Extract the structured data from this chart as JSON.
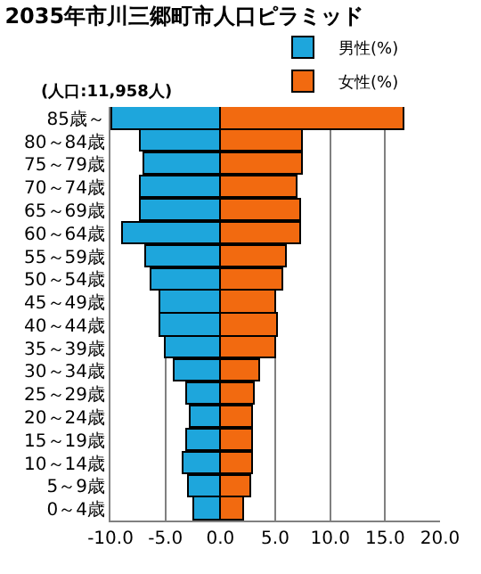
{
  "chart_data": {
    "type": "bar",
    "orientation": "horizontal",
    "title": "2035年市川三郷町市人口ピラミッド",
    "subtitle": "(人口:11,958人)",
    "categories": [
      "85歳～",
      "80～84歳",
      "75～79歳",
      "70～74歳",
      "65～69歳",
      "60～64歳",
      "55～59歳",
      "50～54歳",
      "45～49歳",
      "40～44歳",
      "35～39歳",
      "30～34歳",
      "25～29歳",
      "20～24歳",
      "15～19歳",
      "10～14歳",
      "5～9歳",
      "0～4歳"
    ],
    "series": [
      {
        "name": "男性(%)",
        "color": "#1ea6dc",
        "values": [
          -9.9,
          -7.2,
          -6.9,
          -7.2,
          -7.2,
          -8.8,
          -6.7,
          -6.2,
          -5.5,
          -5.5,
          -4.9,
          -4.1,
          -3.1,
          -2.7,
          -3.1,
          -3.3,
          -2.9,
          -2.3
        ]
      },
      {
        "name": "女性(%)",
        "color": "#f26a10",
        "values": [
          16.8,
          7.5,
          7.5,
          7.1,
          7.3,
          7.3,
          6.1,
          5.8,
          5.1,
          5.3,
          5.0,
          3.7,
          3.1,
          3.0,
          3.0,
          3.0,
          2.8,
          2.2
        ]
      }
    ],
    "xlim": [
      -10,
      20
    ],
    "xticks": [
      {
        "value": -10,
        "label": "-10.0"
      },
      {
        "value": -5,
        "label": "-5.0"
      },
      {
        "value": 0,
        "label": "0.0"
      },
      {
        "value": 5,
        "label": "5.0"
      },
      {
        "value": 10,
        "label": "10.0"
      },
      {
        "value": 15,
        "label": "15.0"
      },
      {
        "value": 20,
        "label": "20.0"
      }
    ],
    "grid": "x",
    "legend": "top right",
    "stacked": true
  }
}
